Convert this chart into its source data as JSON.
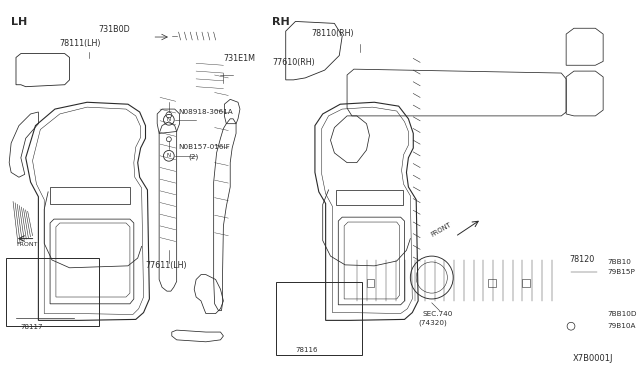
{
  "bg_color": "#ffffff",
  "fig_width": 6.4,
  "fig_height": 3.72,
  "dpi": 100,
  "diagram_id": "X7B0001J",
  "lh_label": "LH",
  "rh_label": "RH"
}
